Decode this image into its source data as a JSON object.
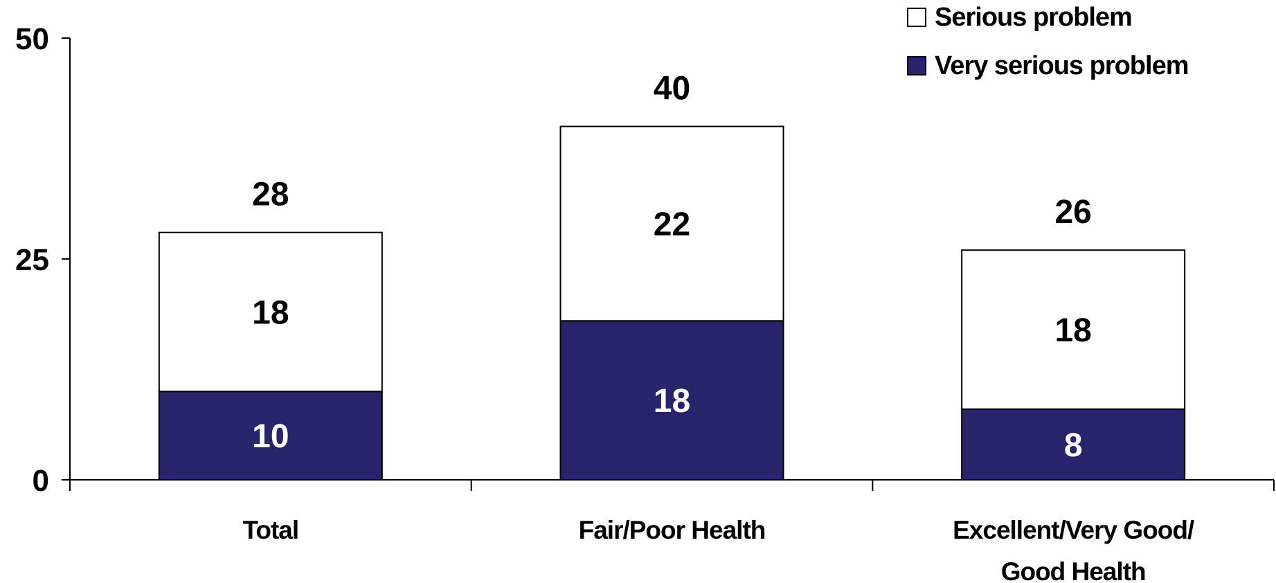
{
  "chart_data": {
    "type": "bar",
    "stacked": true,
    "categories": [
      "Total",
      "Fair/Poor Health",
      "Excellent/Very Good/ Good Health"
    ],
    "category_lines": [
      [
        "Total"
      ],
      [
        "Fair/Poor Health"
      ],
      [
        "Excellent/Very Good/",
        "Good Health"
      ]
    ],
    "series": [
      {
        "name": "Very serious problem",
        "values": [
          10,
          18,
          8
        ],
        "color": "#27246b",
        "label_color": "#ffffff"
      },
      {
        "name": "Serious problem",
        "values": [
          18,
          22,
          18
        ],
        "color": "#ffffff",
        "label_color": "#000000"
      }
    ],
    "totals": [
      28,
      40,
      26
    ],
    "yticks": [
      0,
      25,
      50
    ],
    "ylim": [
      0,
      50
    ],
    "legend_order": [
      "Serious problem",
      "Very serious problem"
    ],
    "legend_position": "top-right",
    "grid": false
  }
}
